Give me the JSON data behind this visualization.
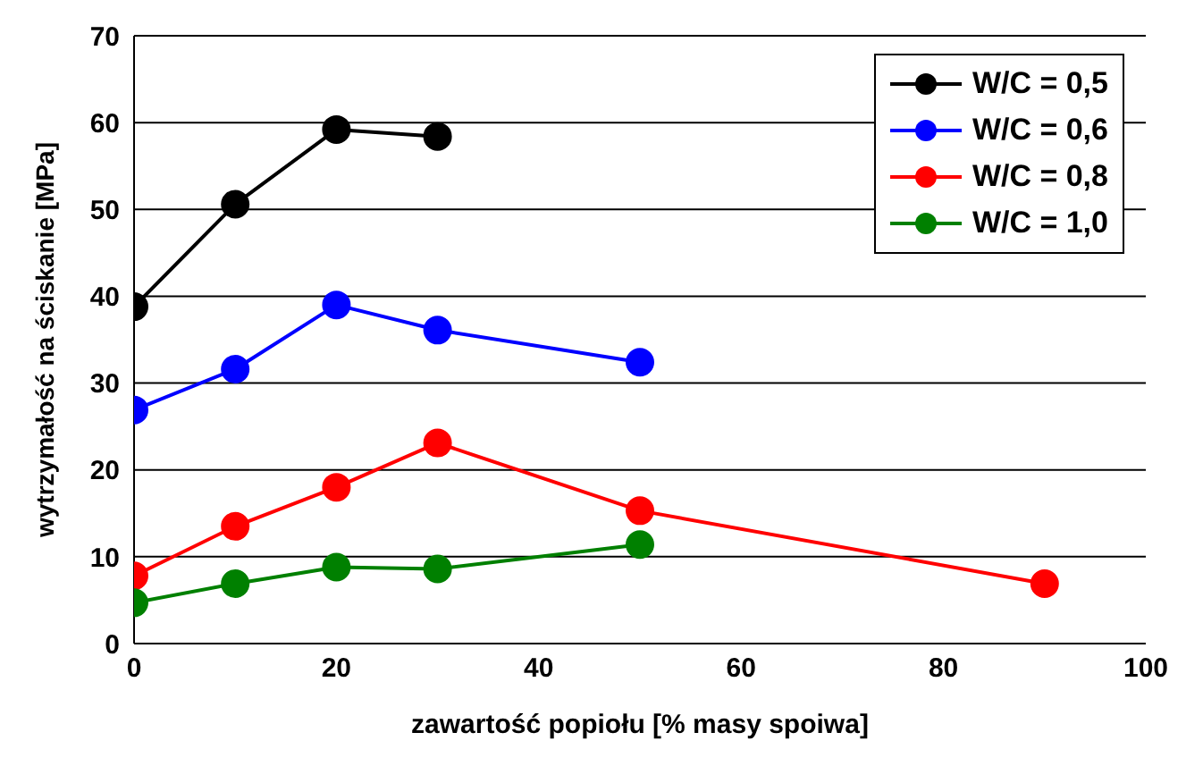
{
  "chart_data": {
    "type": "line",
    "xlabel": "zawartość popiołu [% masy spoiwa]",
    "ylabel": "wytrzymałość na ściskanie [MPa]",
    "xlim": [
      0,
      100
    ],
    "xticks": [
      0,
      20,
      40,
      60,
      80,
      100
    ],
    "ylim": [
      0,
      70
    ],
    "yticks": [
      0,
      10,
      20,
      30,
      40,
      50,
      60,
      70
    ],
    "grid": "y",
    "legend": "top right",
    "marker": "circle",
    "line_style": "solid",
    "series": [
      {
        "name": "W/C = 0,5",
        "color": "#000000",
        "x": [
          0,
          10,
          20,
          30
        ],
        "values": [
          38.8,
          50.6,
          59.2,
          58.4
        ]
      },
      {
        "name": "W/C = 0,6",
        "color": "#0000ff",
        "x": [
          0,
          10,
          20,
          30,
          50
        ],
        "values": [
          26.9,
          31.6,
          39.0,
          36.1,
          32.4
        ]
      },
      {
        "name": "W/C = 0,8",
        "color": "#ff0000",
        "x": [
          0,
          10,
          20,
          30,
          50,
          90
        ],
        "values": [
          7.8,
          13.5,
          18.0,
          23.1,
          15.3,
          6.9
        ]
      },
      {
        "name": "W/C = 1,0",
        "color": "#008000",
        "x": [
          0,
          10,
          20,
          30,
          50
        ],
        "values": [
          4.7,
          6.9,
          8.8,
          8.6,
          11.4
        ]
      }
    ]
  }
}
